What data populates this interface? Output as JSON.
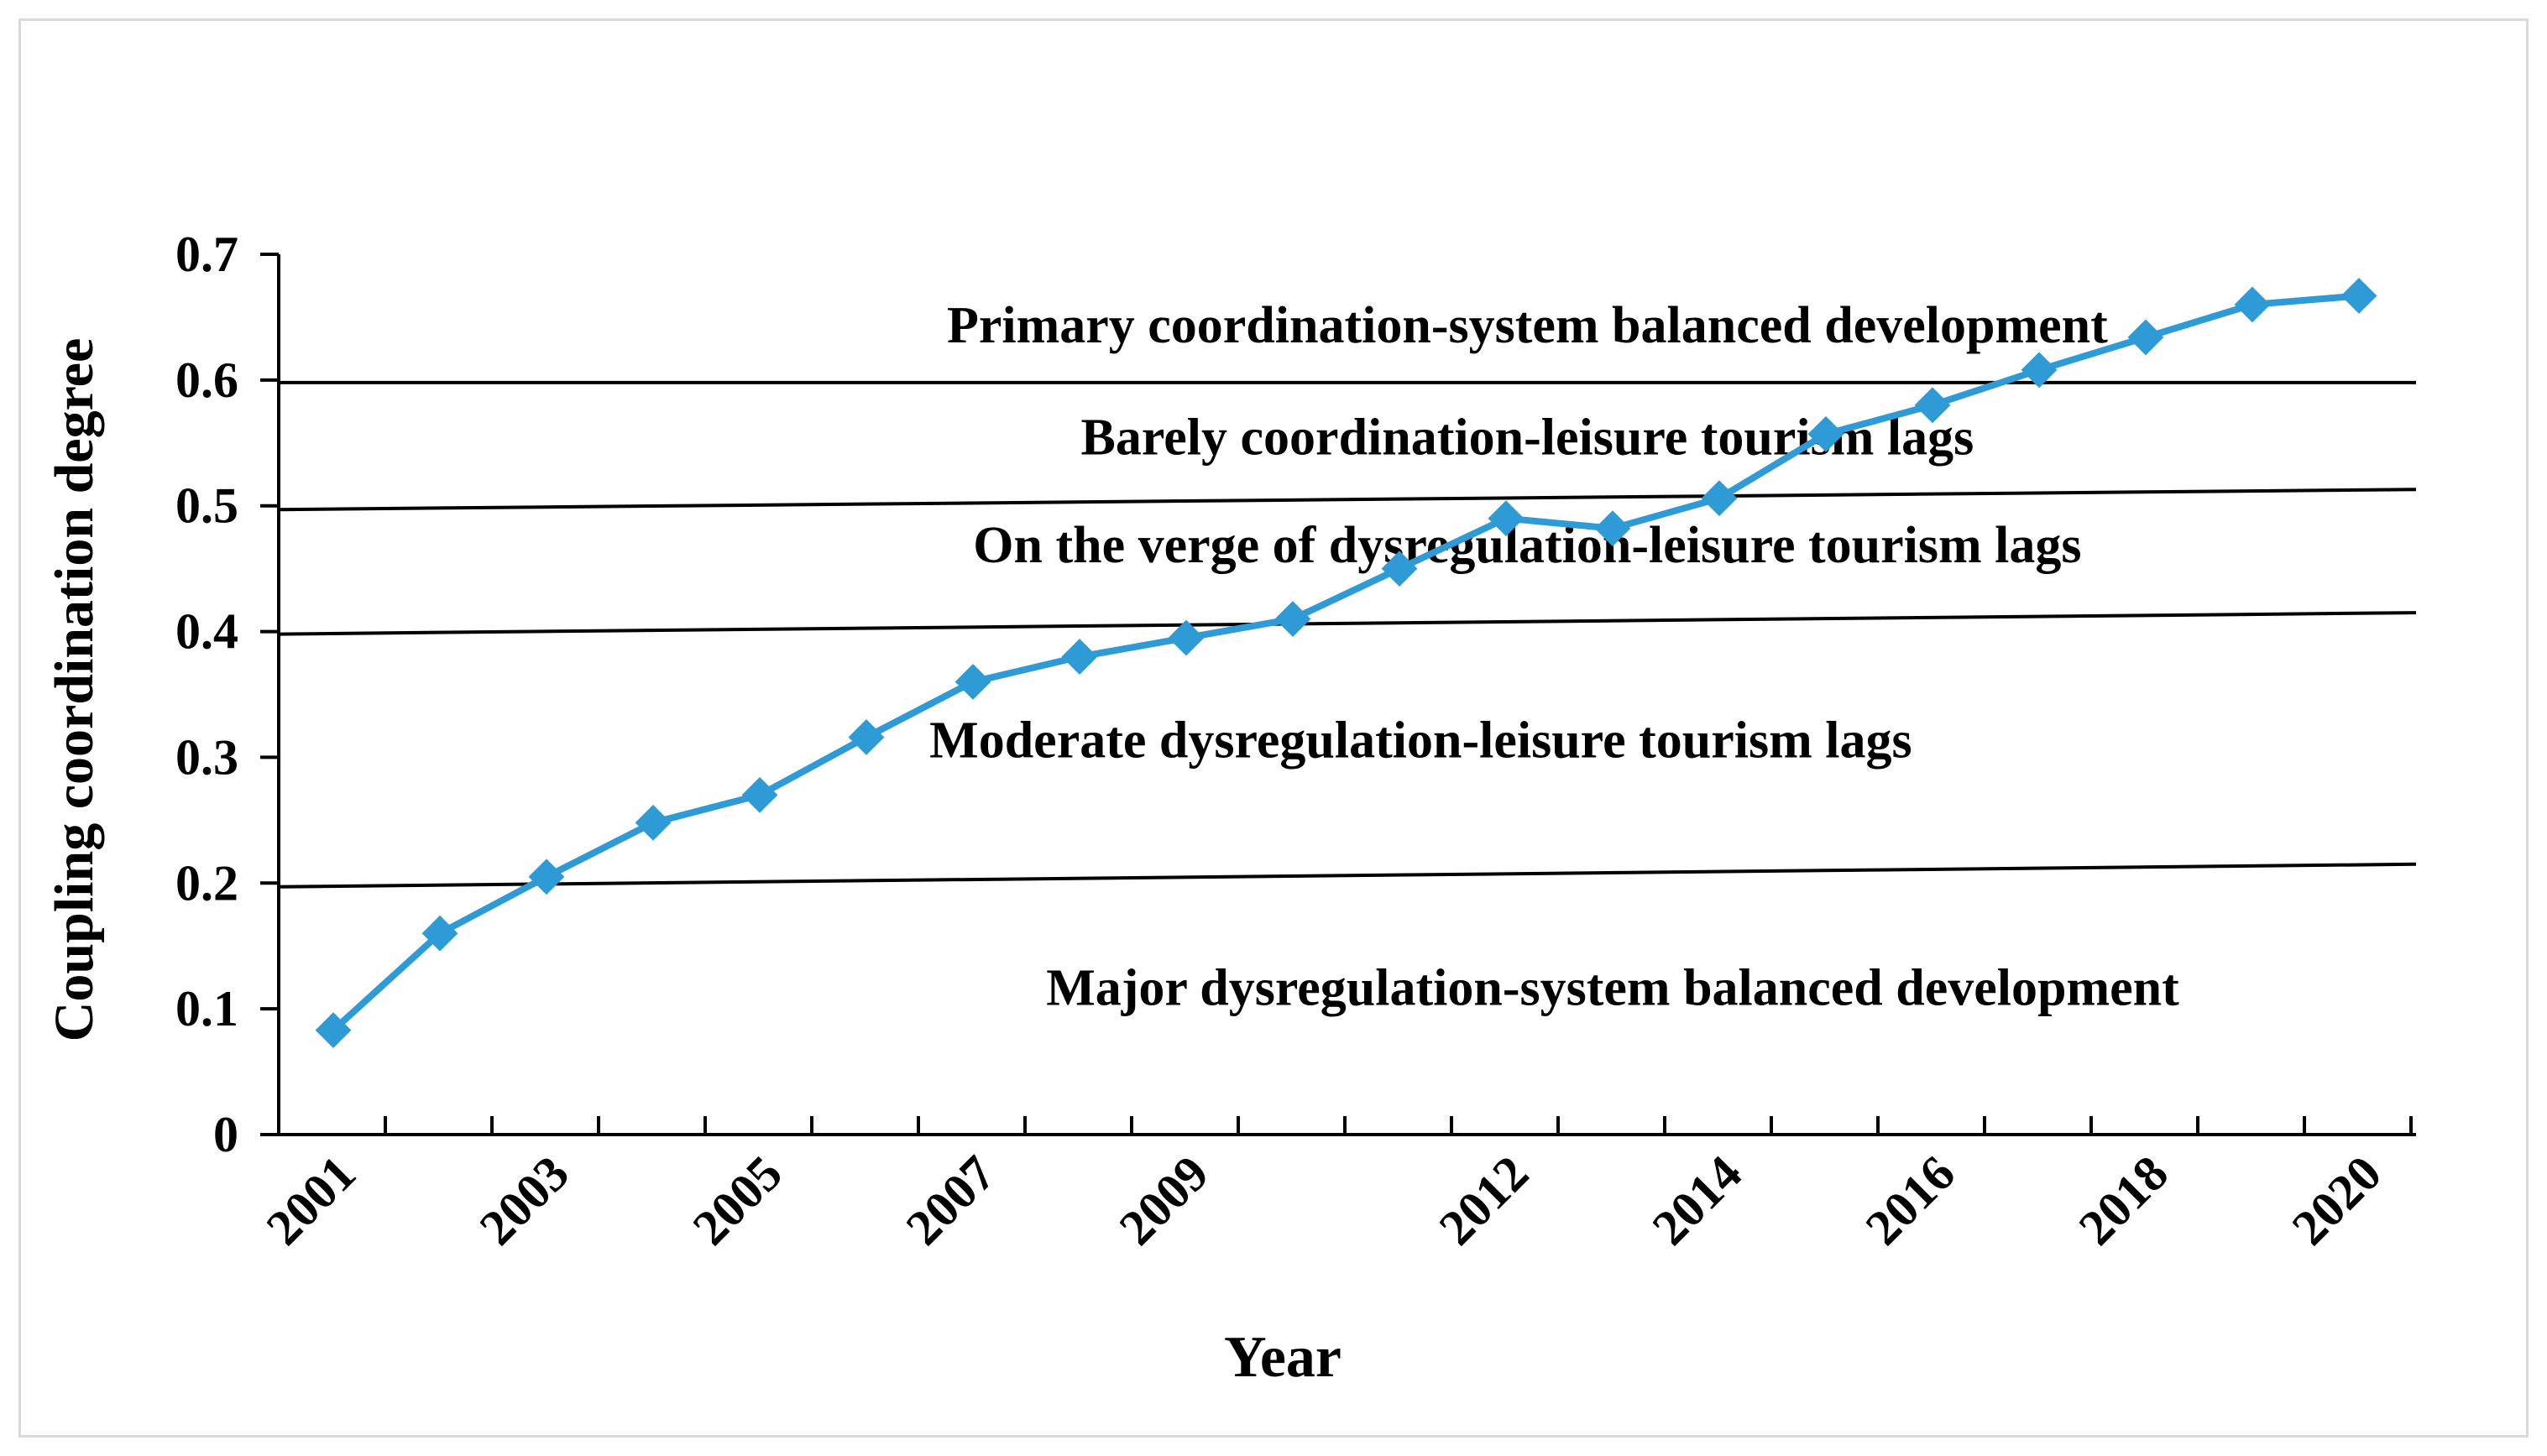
{
  "chart_data": {
    "type": "line",
    "title": "",
    "xlabel": "Year",
    "ylabel": "Coupling coordination degree",
    "ylim": [
      0,
      0.7
    ],
    "yticks": [
      "0",
      "0.1",
      "0.2",
      "0.3",
      "0.4",
      "0.5",
      "0.6",
      "0.7"
    ],
    "x": [
      2001,
      2002,
      2003,
      2004,
      2005,
      2006,
      2007,
      2008,
      2009,
      2010,
      2011,
      2012,
      2013,
      2014,
      2015,
      2016,
      2017,
      2018,
      2019,
      2020
    ],
    "xtick_labels": [
      "2001",
      "2003",
      "2005",
      "2007",
      "2009",
      "2012",
      "2014",
      "2016",
      "2018",
      "2020"
    ],
    "series": [
      {
        "name": "Coupling coordination degree",
        "color": "#2e9bd6",
        "marker": "diamond",
        "values": [
          0.083,
          0.16,
          0.205,
          0.248,
          0.27,
          0.316,
          0.36,
          0.38,
          0.395,
          0.41,
          0.45,
          0.49,
          0.482,
          0.506,
          0.557,
          0.58,
          0.608,
          0.634,
          0.66,
          0.667
        ]
      }
    ],
    "thresholds": [
      {
        "y_start": 0.197,
        "y_end": 0.215
      },
      {
        "y_start": 0.398,
        "y_end": 0.415
      },
      {
        "y_start": 0.497,
        "y_end": 0.513
      },
      {
        "y_start": 0.598,
        "y_end": 0.598
      }
    ],
    "annotations": [
      {
        "text": "Primary coordination-system balanced development",
        "x": 2012.2,
        "y": 0.63
      },
      {
        "text": "Barely coordination-leisure tourism lags",
        "x": 2012.2,
        "y": 0.541
      },
      {
        "text": "On the verge of dysregulation-leisure tourism lags",
        "x": 2012.2,
        "y": 0.455
      },
      {
        "text": "Moderate dysregulation-leisure tourism lags",
        "x": 2011.2,
        "y": 0.3
      },
      {
        "text": "Major dysregulation-system balanced development",
        "x": 2013.0,
        "y": 0.103
      }
    ]
  }
}
